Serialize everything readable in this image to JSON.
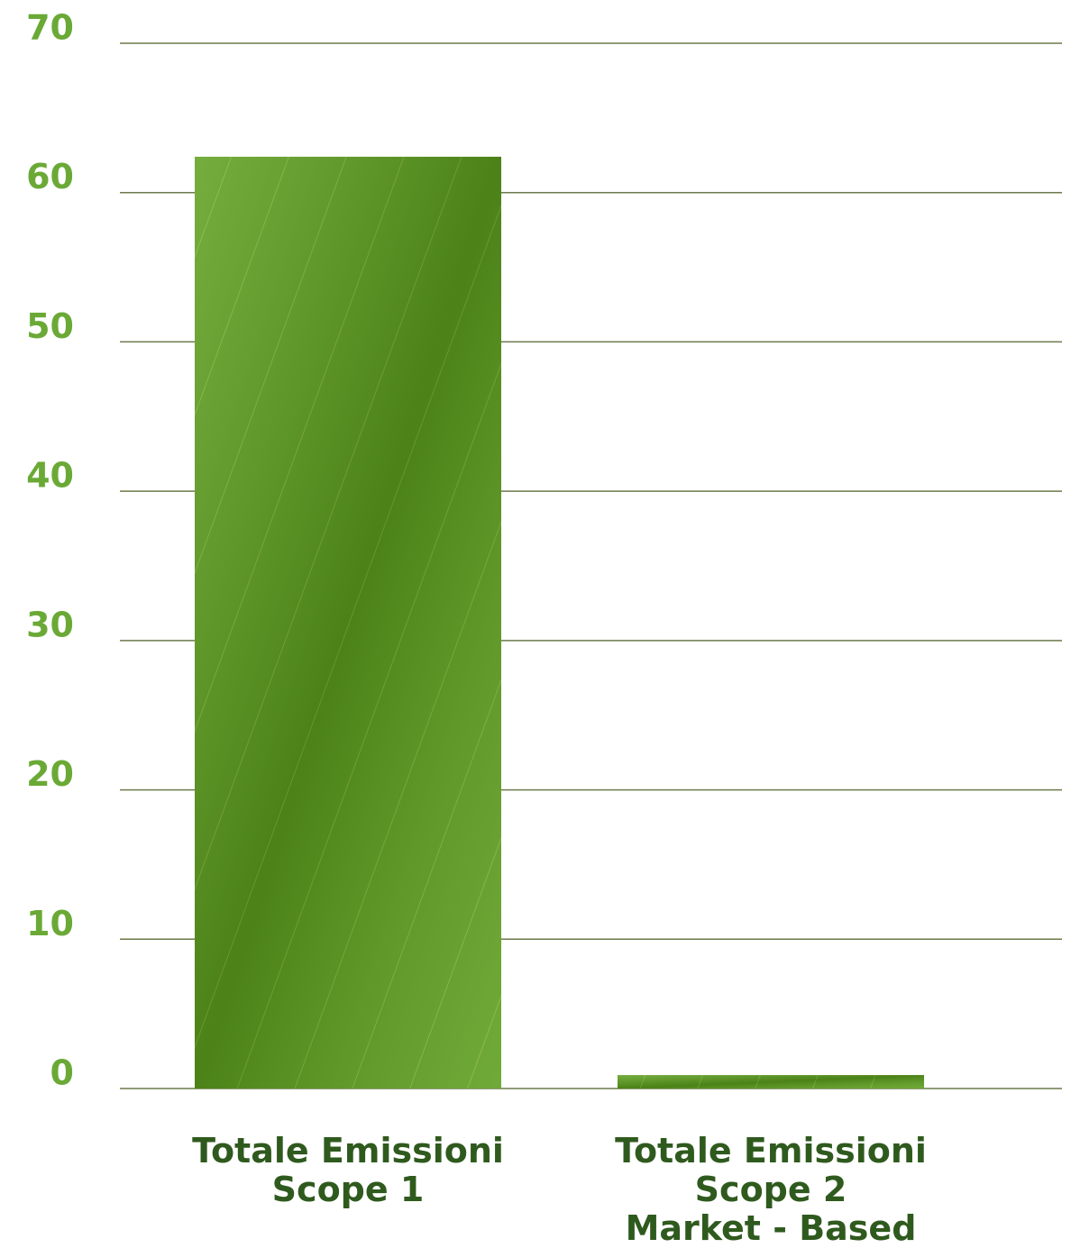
{
  "chart_data": {
    "type": "bar",
    "categories": [
      "Totale Emissioni\nScope 1",
      "Totale Emissioni\nScope 2\nMarket - Based"
    ],
    "values": [
      62.4,
      0.9
    ],
    "color": "#5c9e1c",
    "ylim": [
      0,
      70
    ],
    "yticks": [
      0,
      10,
      20,
      30,
      40,
      50,
      60,
      70
    ],
    "grid": true
  }
}
